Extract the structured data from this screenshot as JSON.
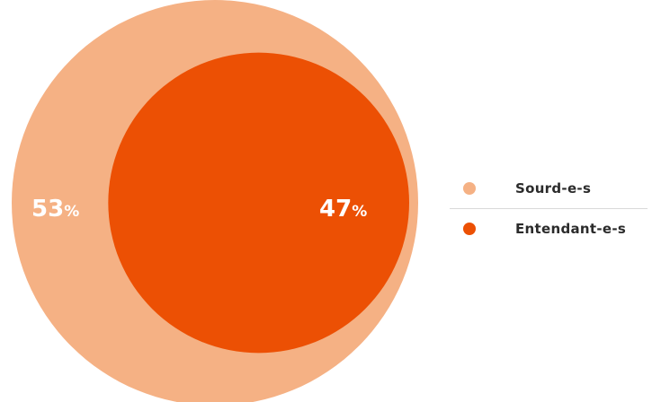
{
  "chart_data": {
    "type": "pie",
    "categories": [
      "Sourd-e-s",
      "Entendant-e-s"
    ],
    "values": [
      53,
      47
    ],
    "unit": "%",
    "value_labels": [
      "53",
      "47"
    ],
    "colors": [
      "#f5b184",
      "#ec5004"
    ],
    "legend_position": "right"
  },
  "legend": {
    "items": [
      {
        "label": "Sourd-e-s",
        "color": "#f5b184"
      },
      {
        "label": "Entendant-e-s",
        "color": "#ec5004"
      }
    ]
  }
}
